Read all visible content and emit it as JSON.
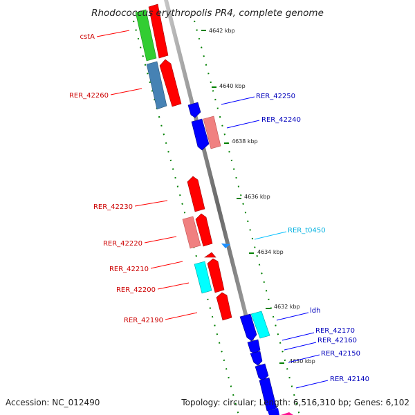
{
  "title": "Rhodococcus erythropolis PR4, complete genome",
  "footer": {
    "accession": "Accession: NC_012490",
    "topology": "Topology: circular; Length: 6,516,310 bp; Genes: 6,102"
  },
  "ticks": [
    "4642 kbp",
    "4640 kbp",
    "4638 kbp",
    "4636 kbp",
    "4634 kbp",
    "4632 kbp",
    "4630 kbp"
  ],
  "labels": {
    "cstA": "cstA",
    "rer42260": "RER_42260",
    "rer42250": "RER_42250",
    "rer42240": "RER_42240",
    "rer42230": "RER_42230",
    "rert0450": "RER_t0450",
    "rer42220": "RER_42220",
    "rer42210": "RER_42210",
    "rer42200": "RER_42200",
    "rer42190": "RER_42190",
    "ldh": "ldh",
    "rer42170": "RER_42170",
    "rer42160": "RER_42160",
    "rer42150": "RER_42150",
    "rer42140": "RER_42140"
  },
  "colors": {
    "red": "#ff0000",
    "pink": "#f08080",
    "green": "#32cd32",
    "steelblue": "#4682b4",
    "blue": "#0000ff",
    "cyan": "#00ffff",
    "tick_green": "#008000",
    "label_red": "#cc0000",
    "label_blue": "#0000bb",
    "label_cyan": "#00b0e0",
    "backbone": "#888888"
  }
}
